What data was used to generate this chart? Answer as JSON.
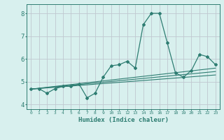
{
  "title": "",
  "xlabel": "Humidex (Indice chaleur)",
  "background_color": "#d8f0ee",
  "grid_color": "#c0c8d0",
  "line_color": "#2e7d72",
  "xlim": [
    -0.5,
    23.5
  ],
  "ylim": [
    3.8,
    8.4
  ],
  "yticks": [
    4,
    5,
    6,
    7,
    8
  ],
  "xticks": [
    0,
    1,
    2,
    3,
    4,
    5,
    6,
    7,
    8,
    9,
    10,
    11,
    12,
    13,
    14,
    15,
    16,
    17,
    18,
    19,
    20,
    21,
    22,
    23
  ],
  "main_x": [
    0,
    1,
    2,
    3,
    4,
    5,
    6,
    7,
    8,
    9,
    10,
    11,
    12,
    13,
    14,
    15,
    16,
    17,
    18,
    19,
    20,
    21,
    22,
    23
  ],
  "main_y": [
    4.7,
    4.7,
    4.5,
    4.7,
    4.8,
    4.8,
    4.9,
    4.3,
    4.5,
    5.2,
    5.7,
    5.75,
    5.9,
    5.6,
    7.5,
    8.0,
    8.0,
    6.7,
    5.4,
    5.2,
    5.5,
    6.2,
    6.1,
    5.75
  ],
  "line1_x": [
    0,
    23
  ],
  "line1_y": [
    4.68,
    5.6
  ],
  "line2_x": [
    0,
    23
  ],
  "line2_y": [
    4.68,
    5.3
  ],
  "line3_x": [
    0,
    23
  ],
  "line3_y": [
    4.68,
    5.45
  ]
}
